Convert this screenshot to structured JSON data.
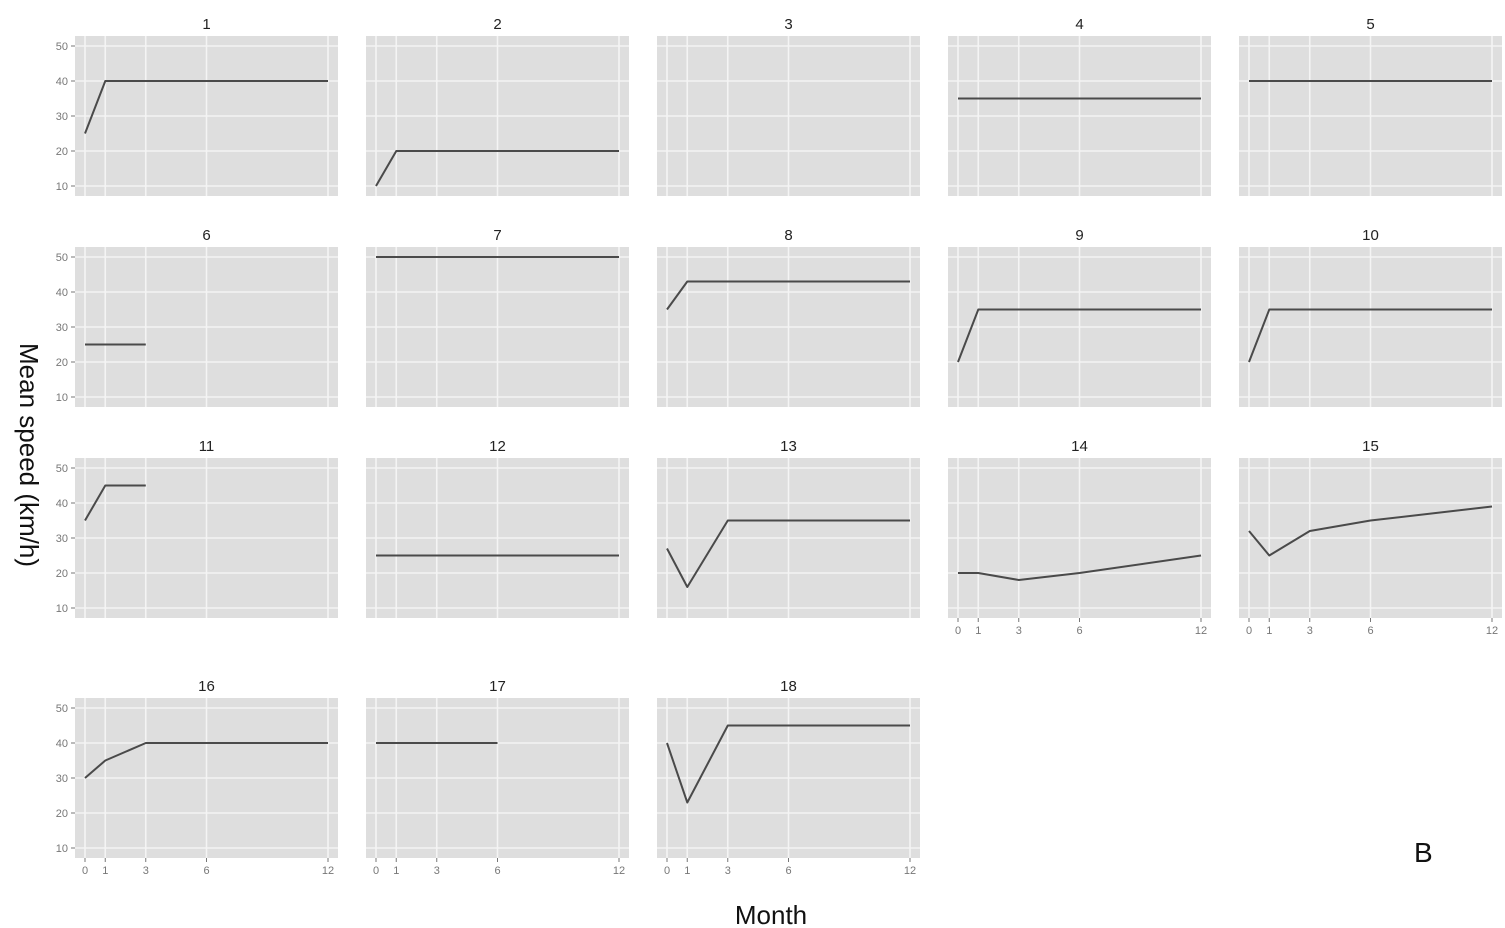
{
  "colors": {
    "panel_background": "#dedede",
    "grid_major": "#f4f4f4",
    "line": "#4a4a4a",
    "tick_text": "#777777"
  },
  "figure": {
    "xlabel": "Month",
    "ylabel": "Mean speed (km/h)",
    "corner_label": "B"
  },
  "chart_data": {
    "type": "line",
    "facet_layout": {
      "columns": 5,
      "rows": 4
    },
    "xlim": [
      0,
      12
    ],
    "ylim": [
      10,
      50
    ],
    "xticks": [
      0,
      1,
      3,
      6,
      12
    ],
    "yticks": [
      10,
      20,
      30,
      40,
      50
    ],
    "grid": true,
    "legend": "none",
    "panels": [
      {
        "title": "1",
        "x": [
          0,
          1,
          3,
          6,
          12
        ],
        "y": [
          25,
          40,
          40,
          40,
          40
        ]
      },
      {
        "title": "2",
        "x": [
          0,
          1,
          3,
          6,
          12
        ],
        "y": [
          10,
          20,
          20,
          20,
          20
        ]
      },
      {
        "title": "3",
        "x": [],
        "y": []
      },
      {
        "title": "4",
        "x": [
          0,
          1,
          3,
          6,
          12
        ],
        "y": [
          35,
          35,
          35,
          35,
          35
        ]
      },
      {
        "title": "5",
        "x": [
          0,
          1,
          3,
          6,
          12
        ],
        "y": [
          40,
          40,
          40,
          40,
          40
        ]
      },
      {
        "title": "6",
        "x": [
          0,
          1,
          3
        ],
        "y": [
          25,
          25,
          25
        ]
      },
      {
        "title": "7",
        "x": [
          0,
          1,
          3,
          6,
          12
        ],
        "y": [
          50,
          50,
          50,
          50,
          50
        ]
      },
      {
        "title": "8",
        "x": [
          0,
          1,
          3,
          6,
          12
        ],
        "y": [
          35,
          43,
          43,
          43,
          43
        ]
      },
      {
        "title": "9",
        "x": [
          0,
          1,
          3,
          6,
          12
        ],
        "y": [
          20,
          35,
          35,
          35,
          35
        ]
      },
      {
        "title": "10",
        "x": [
          0,
          1,
          3,
          6,
          12
        ],
        "y": [
          20,
          35,
          35,
          35,
          35
        ]
      },
      {
        "title": "11",
        "x": [
          0,
          1,
          3
        ],
        "y": [
          35,
          45,
          45
        ]
      },
      {
        "title": "12",
        "x": [
          0,
          1,
          3,
          6,
          12
        ],
        "y": [
          25,
          25,
          25,
          25,
          25
        ]
      },
      {
        "title": "13",
        "x": [
          0,
          1,
          3,
          6,
          12
        ],
        "y": [
          27,
          16,
          35,
          35,
          35
        ]
      },
      {
        "title": "14",
        "x": [
          0,
          1,
          3,
          6,
          12
        ],
        "y": [
          20,
          20,
          18,
          20,
          25
        ]
      },
      {
        "title": "15",
        "x": [
          0,
          1,
          3,
          6,
          12
        ],
        "y": [
          32,
          25,
          32,
          35,
          39
        ]
      },
      {
        "title": "16",
        "x": [
          0,
          1,
          3,
          6,
          12
        ],
        "y": [
          30,
          35,
          40,
          40,
          40
        ]
      },
      {
        "title": "17",
        "x": [
          0,
          1,
          3,
          6
        ],
        "y": [
          40,
          40,
          40,
          40
        ]
      },
      {
        "title": "18",
        "x": [
          0,
          1,
          3,
          6,
          12
        ],
        "y": [
          40,
          23,
          45,
          45,
          45
        ]
      }
    ]
  }
}
